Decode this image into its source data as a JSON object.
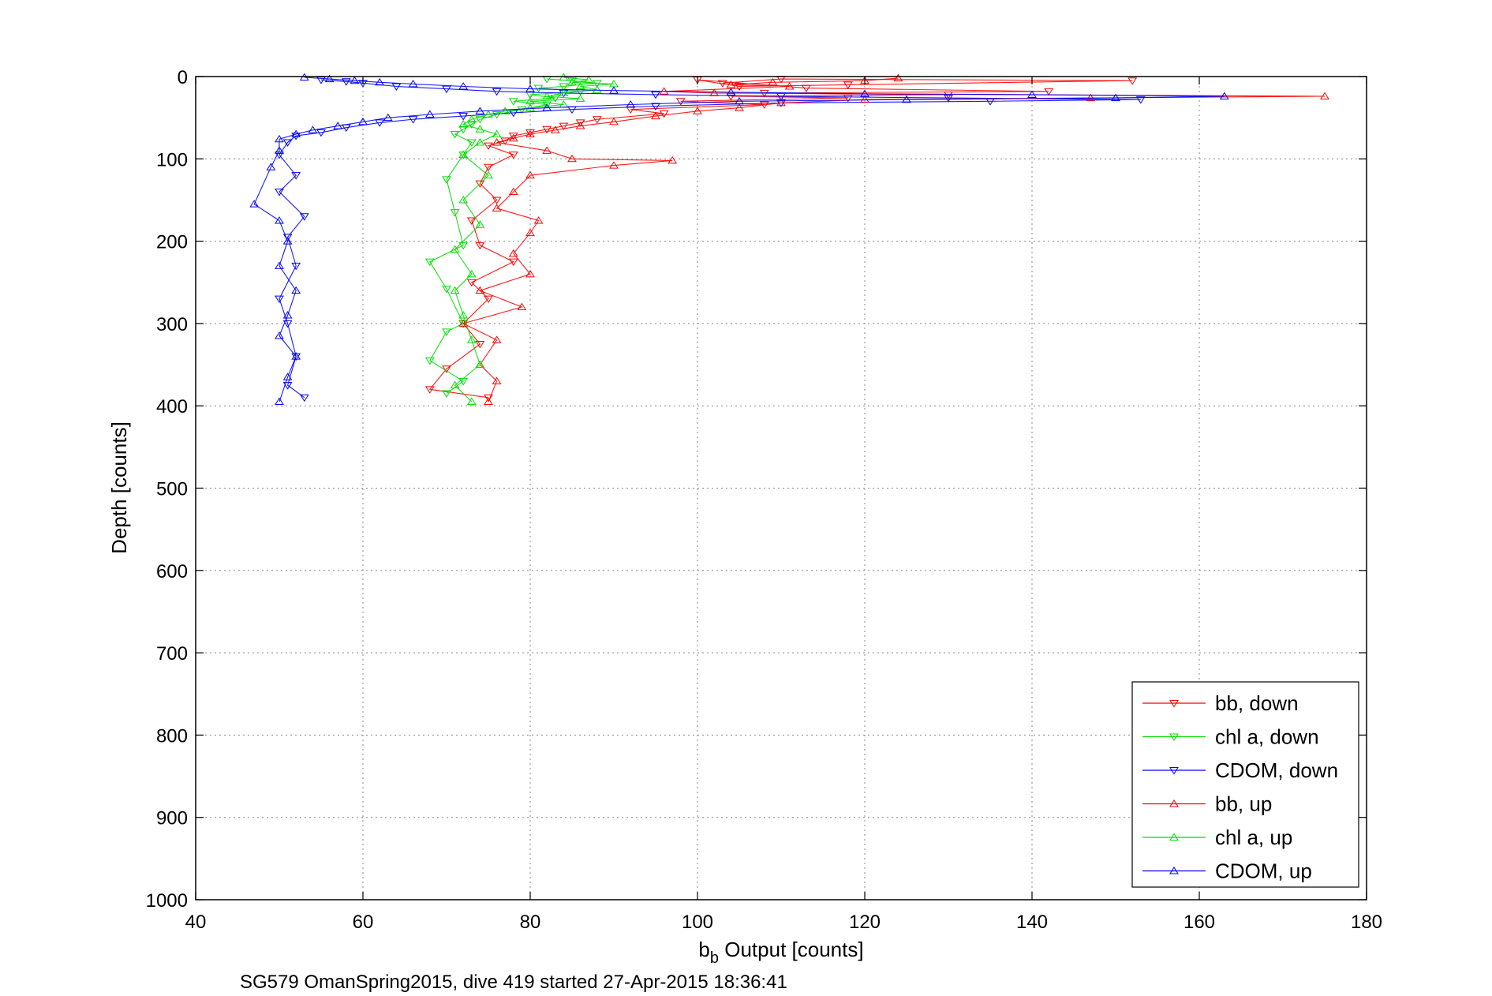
{
  "chart_data": {
    "type": "scatter",
    "xlabel_prefix": "b",
    "xlabel_sub": "b",
    "xlabel_suffix": " Output [counts]",
    "ylabel": "Depth [counts]",
    "footer": "SG579 OmanSpring2015, dive 419 started 27-Apr-2015 18:36:41",
    "xlim": [
      40,
      180
    ],
    "ylim": [
      0,
      1000
    ],
    "y_reversed": true,
    "grid": true,
    "legend_position": "bottom-right",
    "xticks": [
      "40",
      "60",
      "80",
      "100",
      "120",
      "140",
      "160",
      "180"
    ],
    "yticks": [
      "0",
      "100",
      "200",
      "300",
      "400",
      "500",
      "600",
      "700",
      "800",
      "900",
      "1000"
    ],
    "series": [
      {
        "name": "bb, down",
        "color": "#ff0000",
        "marker": "triangle-down",
        "points": [
          [
            103,
            8
          ],
          [
            110,
            3
          ],
          [
            152,
            5
          ],
          [
            118,
            10
          ],
          [
            105,
            12
          ],
          [
            100,
            4
          ],
          [
            113,
            14
          ],
          [
            142,
            18
          ],
          [
            108,
            20
          ],
          [
            130,
            22
          ],
          [
            104,
            24
          ],
          [
            118,
            26
          ],
          [
            98,
            30
          ],
          [
            108,
            34
          ],
          [
            92,
            40
          ],
          [
            96,
            45
          ],
          [
            88,
            52
          ],
          [
            86,
            56
          ],
          [
            84,
            60
          ],
          [
            82,
            64
          ],
          [
            80,
            68
          ],
          [
            78,
            72
          ],
          [
            77,
            78
          ],
          [
            75,
            84
          ],
          [
            78,
            95
          ],
          [
            75,
            110
          ],
          [
            74,
            130
          ],
          [
            76,
            150
          ],
          [
            73,
            175
          ],
          [
            74,
            205
          ],
          [
            78,
            225
          ],
          [
            73,
            250
          ],
          [
            75,
            270
          ],
          [
            72,
            300
          ],
          [
            74,
            325
          ],
          [
            70,
            355
          ],
          [
            68,
            380
          ],
          [
            75,
            390
          ]
        ]
      },
      {
        "name": "chl a, down",
        "color": "#00dd00",
        "marker": "triangle-down",
        "points": [
          [
            82,
            3
          ],
          [
            85,
            5
          ],
          [
            88,
            8
          ],
          [
            84,
            12
          ],
          [
            81,
            14
          ],
          [
            86,
            18
          ],
          [
            80,
            22
          ],
          [
            83,
            26
          ],
          [
            78,
            30
          ],
          [
            82,
            34
          ],
          [
            79,
            40
          ],
          [
            76,
            46
          ],
          [
            74,
            52
          ],
          [
            73,
            58
          ],
          [
            72,
            64
          ],
          [
            71,
            70
          ],
          [
            73,
            80
          ],
          [
            72,
            95
          ],
          [
            70,
            125
          ],
          [
            71,
            165
          ],
          [
            72,
            205
          ],
          [
            68,
            225
          ],
          [
            70,
            258
          ],
          [
            72,
            300
          ],
          [
            70,
            310
          ],
          [
            68,
            345
          ],
          [
            72,
            370
          ],
          [
            70,
            385
          ]
        ]
      },
      {
        "name": "CDOM, down",
        "color": "#0000ff",
        "marker": "triangle-down",
        "points": [
          [
            55,
            4
          ],
          [
            58,
            6
          ],
          [
            60,
            8
          ],
          [
            64,
            12
          ],
          [
            70,
            15
          ],
          [
            76,
            18
          ],
          [
            84,
            20
          ],
          [
            95,
            22
          ],
          [
            110,
            24
          ],
          [
            130,
            26
          ],
          [
            153,
            28
          ],
          [
            135,
            30
          ],
          [
            110,
            32
          ],
          [
            95,
            36
          ],
          [
            85,
            40
          ],
          [
            78,
            44
          ],
          [
            72,
            48
          ],
          [
            66,
            52
          ],
          [
            62,
            56
          ],
          [
            58,
            62
          ],
          [
            55,
            68
          ],
          [
            52,
            72
          ],
          [
            51,
            80
          ],
          [
            50,
            95
          ],
          [
            52,
            120
          ],
          [
            50,
            140
          ],
          [
            53,
            170
          ],
          [
            51,
            195
          ],
          [
            52,
            230
          ],
          [
            50,
            270
          ],
          [
            51,
            300
          ],
          [
            52,
            340
          ],
          [
            51,
            375
          ],
          [
            53,
            390
          ]
        ]
      },
      {
        "name": "bb, up",
        "color": "#ff0000",
        "marker": "triangle-up",
        "points": [
          [
            124,
            2
          ],
          [
            120,
            5
          ],
          [
            109,
            7
          ],
          [
            104,
            10
          ],
          [
            111,
            12
          ],
          [
            96,
            18
          ],
          [
            102,
            20
          ],
          [
            175,
            24
          ],
          [
            147,
            26
          ],
          [
            120,
            28
          ],
          [
            110,
            32
          ],
          [
            105,
            38
          ],
          [
            100,
            42
          ],
          [
            95,
            48
          ],
          [
            90,
            55
          ],
          [
            86,
            60
          ],
          [
            83,
            65
          ],
          [
            80,
            70
          ],
          [
            78,
            75
          ],
          [
            76,
            80
          ],
          [
            82,
            90
          ],
          [
            85,
            100
          ],
          [
            97,
            102
          ],
          [
            90,
            108
          ],
          [
            80,
            120
          ],
          [
            78,
            140
          ],
          [
            76,
            160
          ],
          [
            81,
            175
          ],
          [
            80,
            190
          ],
          [
            78,
            215
          ],
          [
            80,
            240
          ],
          [
            74,
            260
          ],
          [
            79,
            280
          ],
          [
            72,
            300
          ],
          [
            76,
            320
          ],
          [
            74,
            350
          ],
          [
            76,
            370
          ],
          [
            75,
            395
          ]
        ]
      },
      {
        "name": "chl a, up",
        "color": "#00dd00",
        "marker": "triangle-up",
        "points": [
          [
            84,
            1
          ],
          [
            87,
            4
          ],
          [
            85,
            7
          ],
          [
            90,
            9
          ],
          [
            86,
            12
          ],
          [
            88,
            16
          ],
          [
            84,
            20
          ],
          [
            82,
            24
          ],
          [
            86,
            27
          ],
          [
            80,
            30
          ],
          [
            84,
            34
          ],
          [
            80,
            38
          ],
          [
            77,
            42
          ],
          [
            75,
            46
          ],
          [
            73,
            52
          ],
          [
            72,
            58
          ],
          [
            74,
            64
          ],
          [
            76,
            70
          ],
          [
            74,
            80
          ],
          [
            72,
            95
          ],
          [
            75,
            120
          ],
          [
            72,
            150
          ],
          [
            74,
            180
          ],
          [
            71,
            210
          ],
          [
            73,
            240
          ],
          [
            71,
            260
          ],
          [
            72,
            290
          ],
          [
            73,
            320
          ],
          [
            74,
            350
          ],
          [
            71,
            375
          ],
          [
            73,
            395
          ]
        ]
      },
      {
        "name": "CDOM, up",
        "color": "#0000ff",
        "marker": "triangle-up",
        "points": [
          [
            53,
            1
          ],
          [
            56,
            3
          ],
          [
            59,
            5
          ],
          [
            62,
            7
          ],
          [
            66,
            9
          ],
          [
            72,
            12
          ],
          [
            80,
            15
          ],
          [
            90,
            17
          ],
          [
            104,
            19
          ],
          [
            120,
            21
          ],
          [
            140,
            22
          ],
          [
            163,
            24
          ],
          [
            150,
            26
          ],
          [
            125,
            28
          ],
          [
            105,
            30
          ],
          [
            92,
            34
          ],
          [
            82,
            38
          ],
          [
            74,
            42
          ],
          [
            68,
            46
          ],
          [
            63,
            50
          ],
          [
            60,
            55
          ],
          [
            57,
            60
          ],
          [
            54,
            65
          ],
          [
            52,
            70
          ],
          [
            50,
            76
          ],
          [
            50,
            90
          ],
          [
            49,
            110
          ],
          [
            47,
            155
          ],
          [
            50,
            175
          ],
          [
            51,
            200
          ],
          [
            50,
            230
          ],
          [
            52,
            260
          ],
          [
            51,
            290
          ],
          [
            50,
            315
          ],
          [
            52,
            340
          ],
          [
            51,
            365
          ],
          [
            50,
            395
          ]
        ]
      }
    ]
  }
}
